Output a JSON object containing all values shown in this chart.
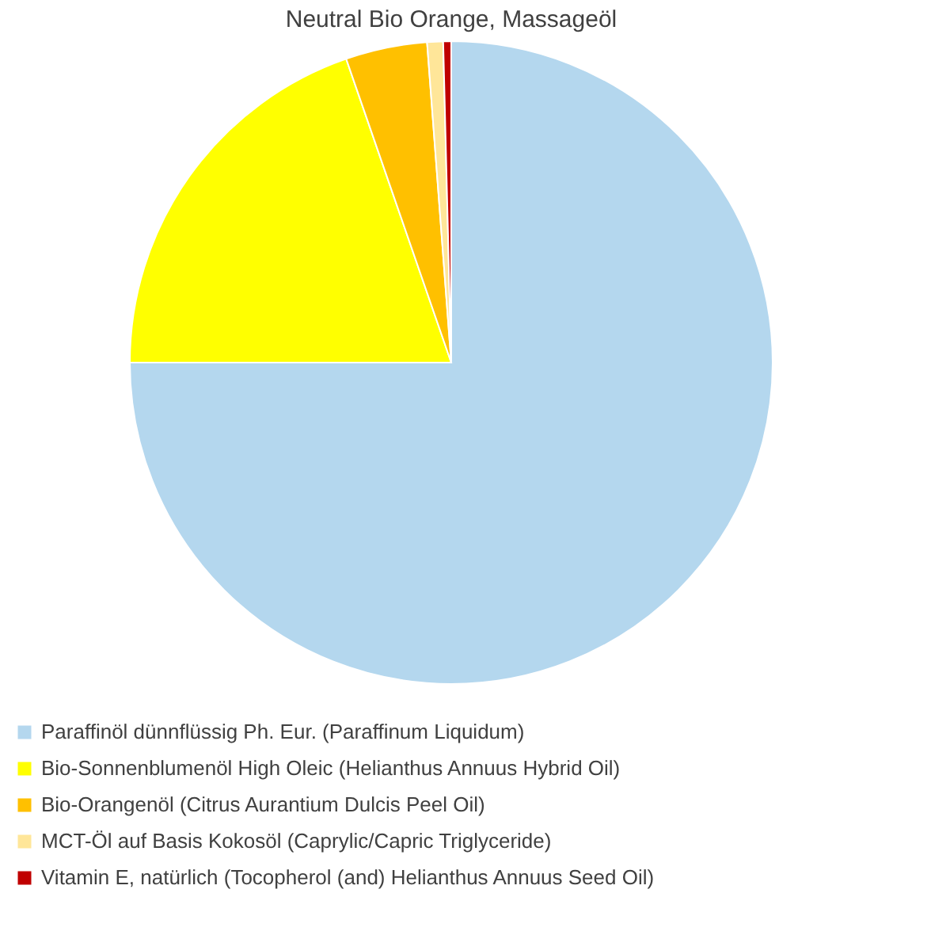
{
  "chart_data": {
    "type": "pie",
    "title": "Neutral Bio Orange, Massageöl",
    "categories": [
      "Paraffinöl dünnflüssig Ph. Eur. (Paraffinum Liquidum)",
      "Bio-Sonnenblumenöl High Oleic (Helianthus Annuus Hybrid Oil)",
      "Bio-Orangenöl (Citrus Aurantium Dulcis Peel Oil)",
      "MCT-Öl auf Basis Kokosöl (Caprylic/Capric Triglyceride)",
      "Vitamin E, natürlich (Tocopherol (and) Helianthus Annuus Seed Oil)"
    ],
    "values": [
      75,
      19.7,
      4.1,
      0.8,
      0.4
    ],
    "colors": [
      "#b4d7ee",
      "#ffff00",
      "#ffc000",
      "#ffe699",
      "#c00000"
    ],
    "legend": "bottom"
  }
}
